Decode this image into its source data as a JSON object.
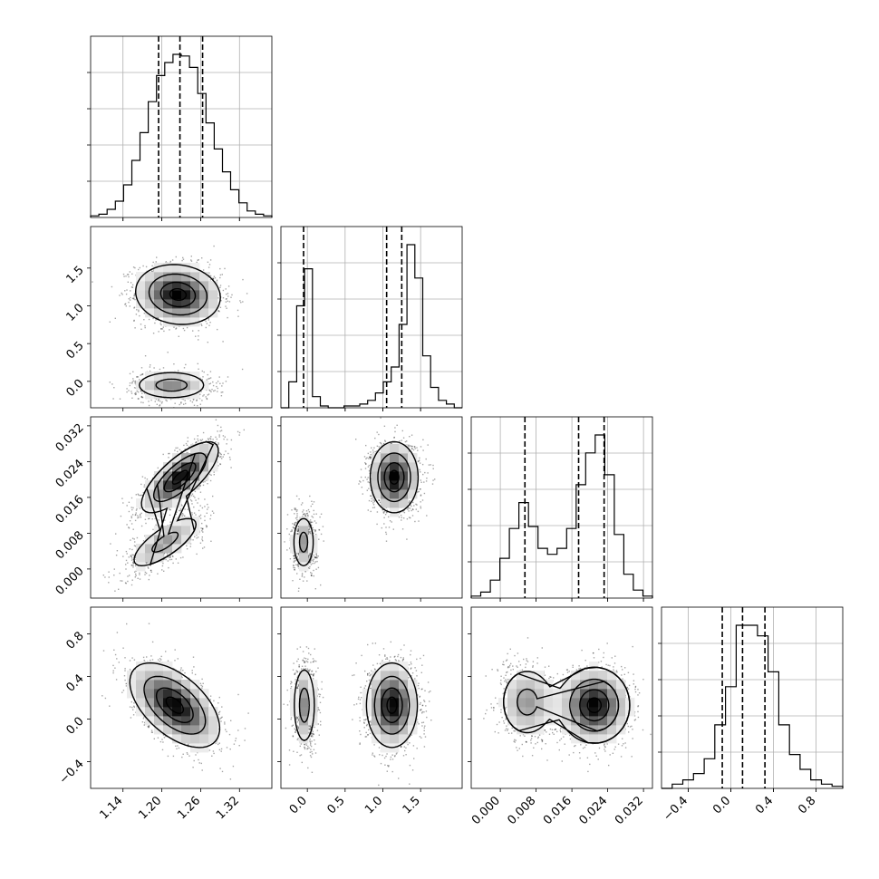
{
  "chart_data": {
    "type": "corner",
    "title": "",
    "parameters": [
      {
        "name": "",
        "range": [
          1.09,
          1.37
        ],
        "ticks": [
          1.14,
          1.2,
          1.26,
          1.32
        ],
        "tick_labels": [
          "1.14",
          "1.20",
          "1.26",
          "1.32"
        ],
        "quantiles": [
          1.195,
          1.228,
          1.263
        ]
      },
      {
        "name": "",
        "range": [
          -0.35,
          2.05
        ],
        "ticks": [
          0.0,
          0.5,
          1.0,
          1.5
        ],
        "tick_labels": [
          "0.0",
          "0.5",
          "1.0",
          "1.5"
        ],
        "quantiles": [
          -0.05,
          1.05,
          1.25
        ]
      },
      {
        "name": "",
        "range": [
          -0.0065,
          0.034
        ],
        "ticks": [
          0.0,
          0.008,
          0.016,
          0.024,
          0.032
        ],
        "tick_labels": [
          "0.000",
          "0.008",
          "0.016",
          "0.024",
          "0.032"
        ],
        "quantiles": [
          0.0055,
          0.0175,
          0.0232
        ]
      },
      {
        "name": "",
        "range": [
          -0.65,
          1.05
        ],
        "ticks": [
          -0.4,
          0.0,
          0.4,
          0.8
        ],
        "tick_labels": [
          "−0.4",
          "0.0",
          "0.4",
          "0.8"
        ],
        "quantiles": [
          -0.08,
          0.11,
          0.32
        ]
      }
    ],
    "histograms": [
      {
        "param": 0,
        "bin_edges": [
          1.09,
          1.37
        ],
        "counts": [
          1,
          2,
          5,
          10,
          20,
          35,
          52,
          71,
          87,
          95,
          100,
          99,
          92,
          76,
          58,
          42,
          28,
          17,
          9,
          4,
          2,
          1
        ]
      },
      {
        "param": 1,
        "bin_edges": [
          -0.35,
          2.05
        ],
        "counts": [
          0,
          14,
          55,
          75,
          6,
          1,
          0,
          0,
          1,
          1,
          2,
          4,
          8,
          14,
          22,
          45,
          88,
          70,
          28,
          11,
          4,
          2,
          0
        ]
      },
      {
        "param": 2,
        "bin_edges": [
          -0.0065,
          0.034
        ],
        "counts": [
          1,
          3,
          9,
          20,
          35,
          48,
          36,
          25,
          22,
          25,
          35,
          57,
          73,
          82,
          62,
          32,
          12,
          4,
          1
        ]
      },
      {
        "param": 3,
        "bin_edges": [
          -0.65,
          1.05
        ],
        "counts": [
          0,
          2,
          4,
          7,
          14,
          30,
          48,
          77,
          77,
          72,
          55,
          30,
          16,
          9,
          4,
          2,
          1
        ]
      }
    ],
    "modes_2d": [
      {
        "pair": [
          0,
          1
        ],
        "centers": [
          [
            1.225,
            1.15,
            1.0
          ],
          [
            1.215,
            -0.05,
            0.55
          ]
        ],
        "sd": [
          [
            0.033,
            0.2
          ],
          [
            0.03,
            0.1
          ]
        ],
        "rho": [
          -0.1,
          0.0
        ]
      },
      {
        "pair": [
          0,
          2
        ],
        "centers": [
          [
            1.228,
            0.0205,
            1.0
          ],
          [
            1.205,
            0.006,
            0.5
          ]
        ],
        "sd": [
          [
            0.03,
            0.004
          ],
          [
            0.03,
            0.0033
          ]
        ],
        "rho": [
          0.75,
          0.75
        ]
      },
      {
        "pair": [
          1,
          2
        ],
        "centers": [
          [
            1.15,
            0.0205,
            1.0
          ],
          [
            -0.05,
            0.006,
            0.5
          ]
        ],
        "sd": [
          [
            0.16,
            0.004
          ],
          [
            0.08,
            0.0033
          ]
        ],
        "rho": [
          0.0,
          0.0
        ]
      },
      {
        "pair": [
          0,
          3
        ],
        "centers": [
          [
            1.22,
            0.13,
            1.0
          ]
        ],
        "sd": [
          [
            0.035,
            0.2
          ]
        ],
        "rho": [
          -0.55
        ]
      },
      {
        "pair": [
          1,
          3
        ],
        "centers": [
          [
            1.12,
            0.13,
            1.0
          ],
          [
            -0.04,
            0.13,
            0.55
          ]
        ],
        "sd": [
          [
            0.17,
            0.2
          ],
          [
            0.08,
            0.2
          ]
        ],
        "rho": [
          0.0,
          0.0
        ]
      },
      {
        "pair": [
          2,
          3
        ],
        "centers": [
          [
            0.021,
            0.13,
            1.0
          ],
          [
            0.006,
            0.16,
            0.5
          ]
        ],
        "sd": [
          [
            0.004,
            0.18
          ],
          [
            0.0033,
            0.18
          ]
        ],
        "rho": [
          0.0,
          0.0
        ]
      }
    ],
    "grid": true,
    "quantile_lines": "dashed"
  }
}
